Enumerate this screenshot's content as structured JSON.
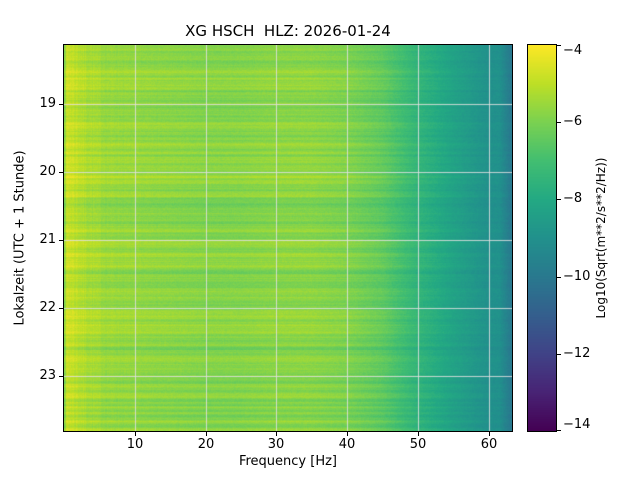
{
  "figure": {
    "title": "XG HSCH  HLZ: 2026-01-24",
    "xlabel": "Frequency [Hz]",
    "ylabel": "Lokalzeit (UTC + 1 Stunde)",
    "colorbar_label": "Log10(Sqrt(m**2/s**2/Hz))"
  },
  "chart_data": {
    "type": "heatmap",
    "subtype": "spectrogram",
    "title": "XG HSCH  HLZ: 2026-01-24",
    "xlabel": "Frequency [Hz]",
    "ylabel": "Lokalzeit (UTC + 1 Stunde)",
    "colorbar_label": "Log10(Sqrt(m**2/s**2/Hz))",
    "colormap": "viridis",
    "grid": true,
    "x_range": [
      0.0,
      63.3
    ],
    "y_range": [
      18.13,
      23.81
    ],
    "x_ticks": [
      10,
      20,
      30,
      40,
      50,
      60
    ],
    "x_tick_labels": [
      "10",
      "20",
      "30",
      "40",
      "50",
      "60"
    ],
    "y_ticks": [
      19,
      20,
      21,
      22,
      23
    ],
    "y_tick_labels": [
      "19",
      "20",
      "21",
      "22",
      "23"
    ],
    "colorbar_range": [
      -14,
      -4
    ],
    "colorbar_ticks": [
      -4,
      -6,
      -8,
      -10,
      -12,
      -14
    ],
    "colorbar_tick_labels": [
      "−4",
      "−6",
      "−8",
      "−10",
      "−12",
      "−14"
    ],
    "freqs": [
      1,
      3,
      6,
      10,
      15,
      20,
      25,
      30,
      35,
      40,
      45,
      50,
      55,
      60
    ],
    "times": [
      18.31,
      18.66,
      19.02,
      19.37,
      19.73,
      20.08,
      20.44,
      20.79,
      21.15,
      21.5,
      21.86,
      22.21,
      22.57,
      22.92,
      23.28,
      23.63
    ],
    "values": [
      [
        -4.9,
        -5.3,
        -5.6,
        -5.7,
        -5.8,
        -5.9,
        -5.9,
        -5.8,
        -5.8,
        -6.0,
        -6.5,
        -7.5,
        -8.3,
        -9.0
      ],
      [
        -4.65,
        -5.05,
        -5.35,
        -5.45,
        -5.55,
        -5.65,
        -5.65,
        -5.55,
        -5.55,
        -5.75,
        -6.3,
        -7.38,
        -8.23,
        -8.95
      ],
      [
        -4.95,
        -5.35,
        -5.65,
        -5.75,
        -5.85,
        -5.95,
        -5.95,
        -5.85,
        -5.85,
        -6.05,
        -6.54,
        -7.53,
        -8.32,
        -9.01
      ],
      [
        -4.75,
        -5.15,
        -5.45,
        -5.55,
        -5.65,
        -5.75,
        -5.75,
        -5.65,
        -5.65,
        -5.85,
        -6.38,
        -7.43,
        -8.26,
        -8.97
      ],
      [
        -4.85,
        -5.25,
        -5.55,
        -5.65,
        -5.75,
        -5.85,
        -5.85,
        -5.75,
        -5.75,
        -5.95,
        -6.46,
        -7.48,
        -8.29,
        -8.99
      ],
      [
        -4.6,
        -5.0,
        -5.3,
        -5.4,
        -5.5,
        -5.6,
        -5.6,
        -5.5,
        -5.5,
        -5.7,
        -6.26,
        -7.35,
        -8.21,
        -8.94
      ],
      [
        -5.0,
        -5.4,
        -5.7,
        -5.8,
        -5.9,
        -6.0,
        -6.0,
        -5.9,
        -5.9,
        -6.1,
        -6.58,
        -7.55,
        -8.33,
        -9.02
      ],
      [
        -4.85,
        -5.25,
        -5.55,
        -5.65,
        -5.75,
        -5.85,
        -5.85,
        -5.75,
        -5.75,
        -5.95,
        -6.46,
        -7.48,
        -8.29,
        -8.99
      ],
      [
        -4.7,
        -5.1,
        -5.4,
        -5.5,
        -5.6,
        -5.7,
        -5.7,
        -5.6,
        -5.6,
        -5.8,
        -6.34,
        -7.4,
        -8.24,
        -8.96
      ],
      [
        -4.9,
        -5.3,
        -5.6,
        -5.7,
        -5.8,
        -5.9,
        -5.9,
        -5.8,
        -5.8,
        -6.0,
        -6.5,
        -7.5,
        -8.3,
        -9.0
      ],
      [
        -4.8,
        -5.2,
        -5.5,
        -5.6,
        -5.7,
        -5.8,
        -5.8,
        -5.7,
        -5.7,
        -5.9,
        -6.42,
        -7.45,
        -8.27,
        -8.98
      ],
      [
        -4.65,
        -5.05,
        -5.35,
        -5.45,
        -5.55,
        -5.65,
        -5.65,
        -5.55,
        -5.55,
        -5.75,
        -6.3,
        -7.38,
        -8.23,
        -8.95
      ],
      [
        -4.95,
        -5.35,
        -5.65,
        -5.75,
        -5.85,
        -5.95,
        -5.95,
        -5.85,
        -5.85,
        -6.05,
        -6.54,
        -7.53,
        -8.32,
        -9.01
      ],
      [
        -4.8,
        -5.2,
        -5.5,
        -5.6,
        -5.7,
        -5.8,
        -5.8,
        -5.7,
        -5.7,
        -5.9,
        -6.42,
        -7.45,
        -8.27,
        -8.98
      ],
      [
        -4.85,
        -5.25,
        -5.55,
        -5.65,
        -5.75,
        -5.85,
        -5.85,
        -5.75,
        -5.75,
        -5.95,
        -6.46,
        -7.48,
        -8.29,
        -8.99
      ],
      [
        -4.75,
        -5.15,
        -5.45,
        -5.55,
        -5.65,
        -5.75,
        -5.75,
        -5.65,
        -5.65,
        -5.85,
        -6.38,
        -7.43,
        -8.26,
        -8.97
      ]
    ]
  }
}
